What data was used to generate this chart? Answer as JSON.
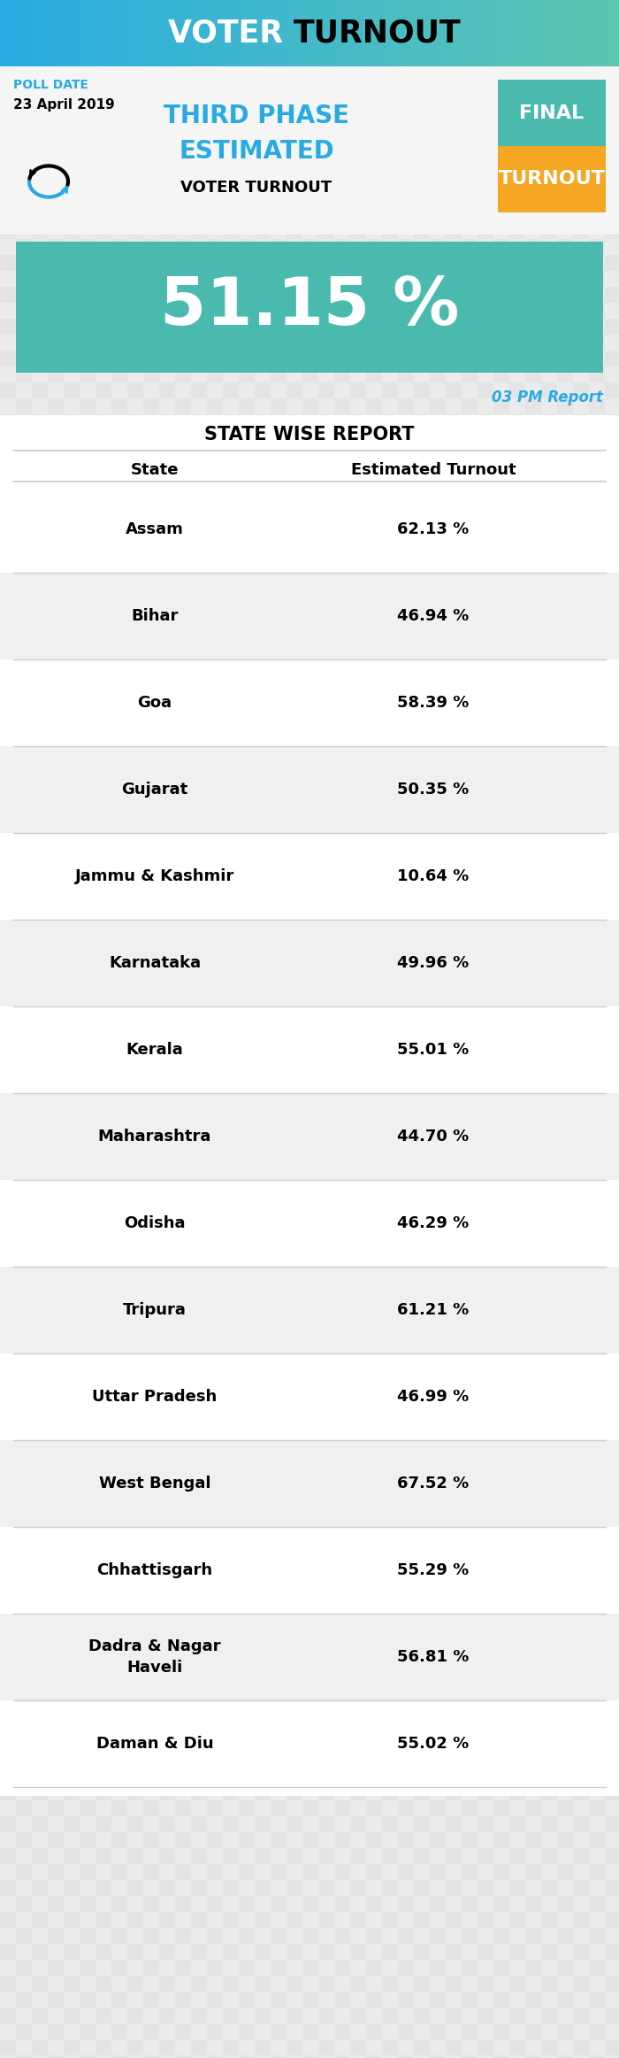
{
  "title_white": "VOTER ",
  "title_black": "TURNOUT",
  "poll_date_label": "POLL DATE",
  "poll_date": "23 April 2019",
  "phase_line1": "THIRD PHASE",
  "phase_line2": "ESTIMATED",
  "phase_line3": "VOTER TURNOUT",
  "final_top": "FINAL",
  "final_bottom": "TURNOUT",
  "overall_pct": "51.15 %",
  "report_time": "03 PM Report",
  "table_title": "STATE WISE REPORT",
  "col1_header": "State",
  "col2_header": "Estimated Turnout",
  "states": [
    "Assam",
    "Bihar",
    "Goa",
    "Gujarat",
    "Jammu & Kashmir",
    "Karnataka",
    "Kerala",
    "Maharashtra",
    "Odisha",
    "Tripura",
    "Uttar Pradesh",
    "West Bengal",
    "Chhattisgarh",
    "Dadra & Nagar\nHaveli",
    "Daman & Diu"
  ],
  "turnouts": [
    "62.13 %",
    "46.94 %",
    "58.39 %",
    "50.35 %",
    "10.64 %",
    "49.96 %",
    "55.01 %",
    "44.70 %",
    "46.29 %",
    "61.21 %",
    "46.99 %",
    "67.52 %",
    "55.29 %",
    "56.81 %",
    "55.02 %"
  ],
  "header_grad_start": "#29ABE2",
  "header_grad_end": "#5DC6B0",
  "teal_bg": "#4ABAAF",
  "final_top_color": "#4ABAAF",
  "final_bottom_color": "#F5A623",
  "phase_color": "#29ABE2",
  "poll_date_color": "#29ABE2",
  "report_color": "#29ABE2",
  "row_odd": "#FFFFFF",
  "row_even": "#F0F0F0",
  "body_bg": "#E8E8E8",
  "separator_color": "#CCCCCC",
  "grid_color": "#DDDDDD"
}
